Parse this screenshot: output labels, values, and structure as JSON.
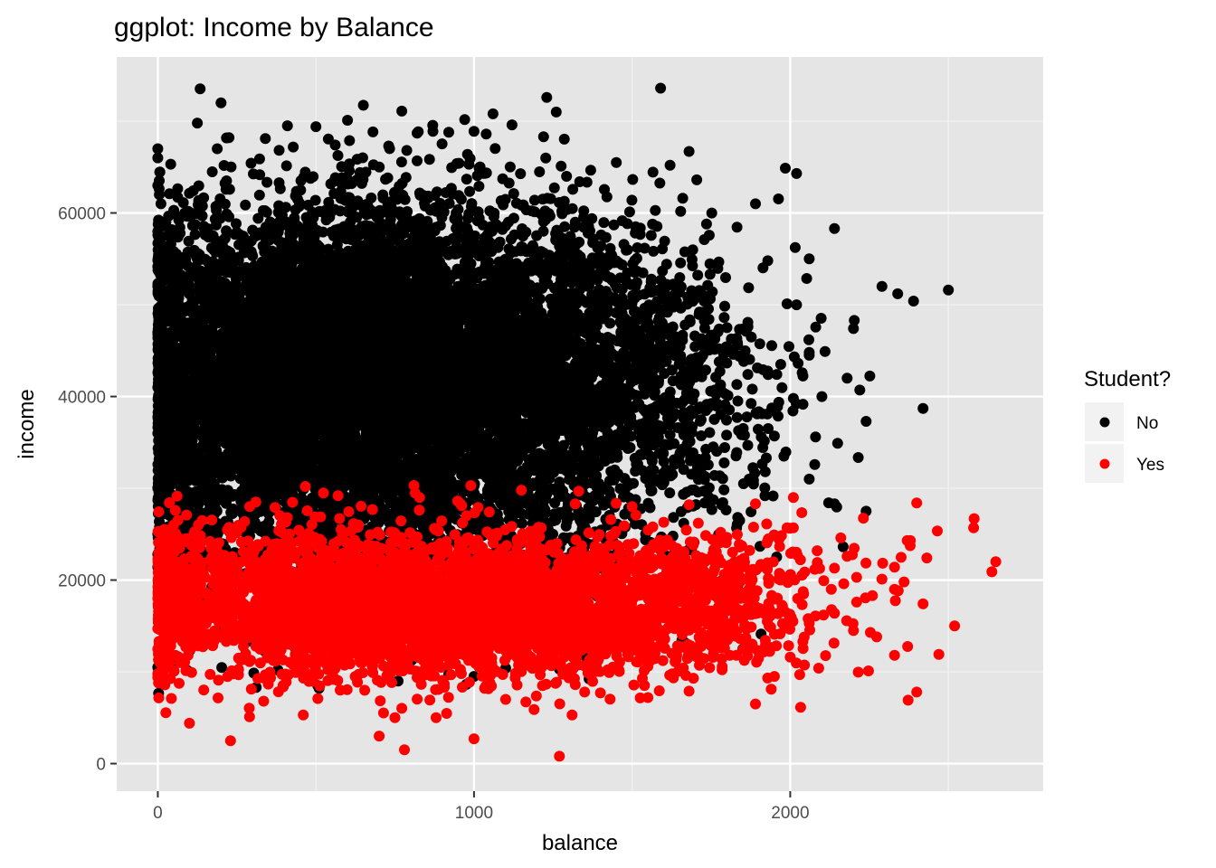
{
  "chart_data": {
    "type": "scatter",
    "title": "ggplot: Income by Balance",
    "xlabel": "balance",
    "ylabel": "income",
    "xlim": [
      -130,
      2800
    ],
    "ylim": [
      -3000,
      77000
    ],
    "x_ticks": [
      0,
      1000,
      2000
    ],
    "y_ticks": [
      0,
      20000,
      40000,
      60000
    ],
    "x_tick_labels": [
      "0",
      "1000",
      "2000"
    ],
    "y_tick_labels": [
      "0",
      "20000",
      "40000",
      "60000"
    ],
    "grid": true,
    "legend": {
      "title": "Student?",
      "position": "right",
      "entries": [
        {
          "label": "No",
          "color": "#000000"
        },
        {
          "label": "Yes",
          "color": "#ff0000"
        }
      ]
    },
    "panel_background": "#e5e5e5",
    "series": [
      {
        "name": "No",
        "color": "#000000",
        "points": [
          [
            0,
            67000
          ],
          [
            0,
            66000
          ],
          [
            0,
            63000
          ],
          [
            10,
            61000
          ],
          [
            0,
            58000
          ],
          [
            0,
            52000
          ],
          [
            0,
            47000
          ],
          [
            0,
            41000
          ],
          [
            0,
            36000
          ],
          [
            0,
            30000
          ],
          [
            0,
            25000
          ],
          [
            0,
            10500
          ],
          [
            200,
            72000
          ],
          [
            125,
            69800
          ],
          [
            225,
            68200
          ],
          [
            340,
            68100
          ],
          [
            410,
            69500
          ],
          [
            500,
            69400
          ],
          [
            600,
            70100
          ],
          [
            730,
            67300
          ],
          [
            820,
            68700
          ],
          [
            870,
            68900
          ],
          [
            920,
            68800
          ],
          [
            1000,
            68900
          ],
          [
            1060,
            70800
          ],
          [
            1120,
            69600
          ],
          [
            1230,
            72600
          ],
          [
            1260,
            71000
          ],
          [
            1220,
            68300
          ],
          [
            1590,
            73600
          ],
          [
            1680,
            66700
          ],
          [
            1620,
            65200
          ],
          [
            1450,
            65500
          ],
          [
            1660,
            61600
          ],
          [
            1890,
            61000
          ],
          [
            2020,
            64300
          ],
          [
            2060,
            55000
          ],
          [
            2140,
            58300
          ],
          [
            2290,
            52000
          ],
          [
            2390,
            50400
          ],
          [
            2500,
            51600
          ],
          [
            2340,
            51200
          ],
          [
            2420,
            38700
          ],
          [
            2220,
            40700
          ],
          [
            2240,
            37300
          ],
          [
            2150,
            34900
          ],
          [
            2080,
            35600
          ],
          [
            2060,
            31000
          ],
          [
            2140,
            28300
          ],
          [
            2240,
            27500
          ],
          [
            1990,
            50100
          ],
          [
            2020,
            50000
          ],
          [
            2110,
            44900
          ],
          [
            2060,
            44500
          ],
          [
            1970,
            43500
          ],
          [
            2180,
            42000
          ],
          [
            2010,
            39800
          ],
          [
            1930,
            42400
          ],
          [
            1960,
            38900
          ],
          [
            2200,
            47400
          ],
          [
            2100,
            40000
          ],
          [
            2060,
            44800
          ],
          [
            1880,
            40800
          ],
          [
            1950,
            38500
          ],
          [
            1980,
            33500
          ],
          [
            1850,
            36400
          ],
          [
            1870,
            31000
          ],
          [
            1950,
            35700
          ],
          [
            1800,
            47500
          ],
          [
            1820,
            44600
          ],
          [
            1760,
            37500
          ],
          [
            1730,
            31300
          ],
          [
            1920,
            29200
          ],
          [
            1840,
            26500
          ],
          [
            380,
            10200
          ],
          [
            510,
            8200
          ],
          [
            760,
            9000
          ],
          [
            920,
            9700
          ],
          [
            870,
            11200
          ],
          [
            1000,
            9500
          ],
          [
            1100,
            10400
          ],
          [
            1270,
            10300
          ],
          [
            1380,
            12500
          ],
          [
            1700,
            19300
          ],
          [
            1830,
            16800
          ],
          [
            1850,
            12500
          ],
          [
            100,
            13200
          ],
          [
            180,
            14200
          ],
          [
            300,
            14700
          ],
          [
            60,
            20300
          ],
          [
            0,
            22800
          ]
        ],
        "clusters": [
          {
            "cx": 650,
            "cy": 43000,
            "sx": 330,
            "sy": 8000,
            "n": 4200
          },
          {
            "cx": 350,
            "cy": 40000,
            "sx": 200,
            "sy": 9000,
            "n": 1500
          },
          {
            "cx": 1050,
            "cy": 42000,
            "sx": 330,
            "sy": 8000,
            "n": 2000
          },
          {
            "cx": 1500,
            "cy": 41000,
            "sx": 230,
            "sy": 8000,
            "n": 700
          },
          {
            "cx": 700,
            "cy": 56000,
            "sx": 400,
            "sy": 5000,
            "n": 500
          },
          {
            "cx": 50,
            "cy": 40000,
            "sx": 60,
            "sy": 11000,
            "n": 500
          },
          {
            "cx": 800,
            "cy": 27000,
            "sx": 400,
            "sy": 3000,
            "n": 500
          },
          {
            "cx": 700,
            "cy": 19000,
            "sx": 400,
            "sy": 4000,
            "n": 280
          }
        ]
      },
      {
        "name": "Yes",
        "color": "#ff0000",
        "points": [
          [
            1270,
            800
          ],
          [
            1000,
            2700
          ],
          [
            230,
            2500
          ],
          [
            780,
            1500
          ],
          [
            100,
            4400
          ],
          [
            290,
            5100
          ],
          [
            460,
            5300
          ],
          [
            700,
            3000
          ],
          [
            750,
            5000
          ],
          [
            880,
            5000
          ],
          [
            1190,
            5900
          ],
          [
            1310,
            5300
          ],
          [
            1350,
            7800
          ],
          [
            1100,
            7000
          ],
          [
            1550,
            7200
          ],
          [
            1680,
            7900
          ],
          [
            1890,
            6500
          ],
          [
            1940,
            8100
          ],
          [
            1950,
            9500
          ],
          [
            2030,
            9700
          ],
          [
            2090,
            10400
          ],
          [
            2330,
            11800
          ],
          [
            2470,
            11900
          ],
          [
            2520,
            15000
          ],
          [
            2420,
            17400
          ],
          [
            2400,
            7800
          ],
          [
            2650,
            22000
          ],
          [
            2580,
            25700
          ],
          [
            2400,
            28400
          ],
          [
            2370,
            24300
          ],
          [
            2380,
            24300
          ],
          [
            2330,
            21400
          ],
          [
            2290,
            20100
          ],
          [
            2210,
            20300
          ],
          [
            2180,
            22600
          ],
          [
            2160,
            24600
          ],
          [
            2010,
            25700
          ],
          [
            1990,
            25700
          ],
          [
            1890,
            28300
          ],
          [
            2010,
            29000
          ],
          [
            1930,
            24400
          ],
          [
            2140,
            21300
          ],
          [
            2130,
            19000
          ],
          [
            2210,
            17600
          ],
          [
            2200,
            14500
          ],
          [
            2040,
            13300
          ],
          [
            2000,
            11600
          ],
          [
            1860,
            13700
          ],
          [
            1830,
            11800
          ],
          [
            2060,
            15300
          ],
          [
            2330,
            19000
          ],
          [
            2360,
            19800
          ],
          [
            2260,
            18300
          ],
          [
            1750,
            15500
          ],
          [
            1720,
            21700
          ],
          [
            1840,
            23600
          ],
          [
            1780,
            25200
          ],
          [
            1680,
            28200
          ],
          [
            1600,
            26300
          ],
          [
            1500,
            28000
          ],
          [
            1320,
            28300
          ],
          [
            1150,
            29800
          ],
          [
            990,
            30300
          ],
          [
            810,
            30300
          ],
          [
            570,
            29200
          ],
          [
            310,
            28500
          ],
          [
            140,
            26500
          ],
          [
            50,
            26000
          ],
          [
            20,
            21500
          ],
          [
            0,
            9400
          ],
          [
            0,
            9800
          ],
          [
            0,
            12500
          ],
          [
            0,
            14700
          ],
          [
            0,
            18000
          ]
        ],
        "clusters": [
          {
            "cx": 700,
            "cy": 17000,
            "sx": 260,
            "sy": 3200,
            "n": 1400
          },
          {
            "cx": 1200,
            "cy": 17000,
            "sx": 280,
            "sy": 3200,
            "n": 1200
          },
          {
            "cx": 350,
            "cy": 17000,
            "sx": 220,
            "sy": 3500,
            "n": 600
          },
          {
            "cx": 1650,
            "cy": 17500,
            "sx": 220,
            "sy": 3500,
            "n": 500
          },
          {
            "cx": 50,
            "cy": 18000,
            "sx": 50,
            "sy": 3500,
            "n": 250
          },
          {
            "cx": 900,
            "cy": 12000,
            "sx": 500,
            "sy": 2500,
            "n": 300
          },
          {
            "cx": 900,
            "cy": 22500,
            "sx": 600,
            "sy": 2500,
            "n": 400
          }
        ]
      }
    ]
  }
}
